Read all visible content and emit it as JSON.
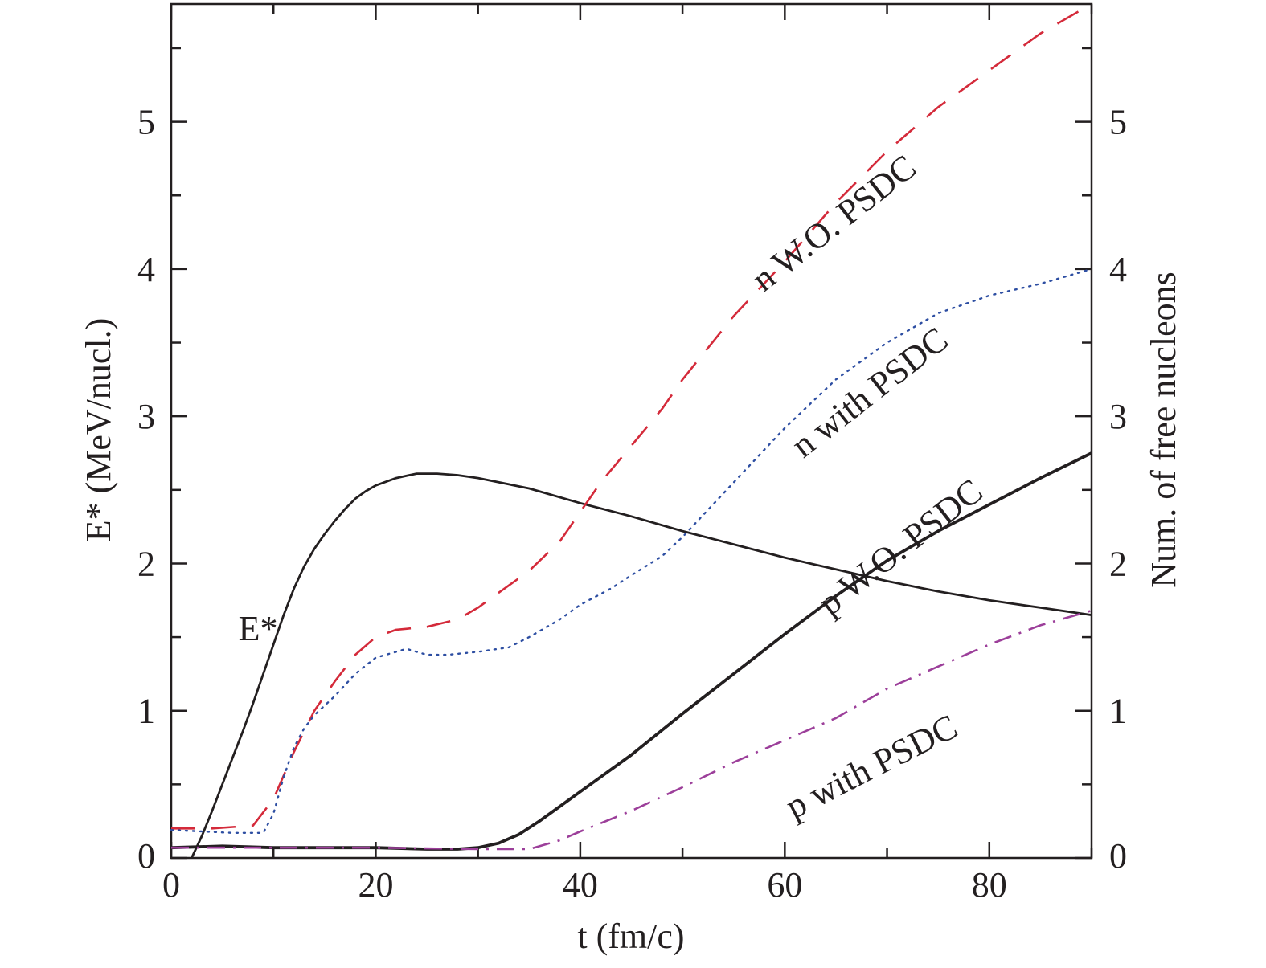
{
  "chart_data": {
    "type": "line",
    "xlabel": "t (fm/c)",
    "ylabel_left": "E* (MeV/nucl.)",
    "ylabel_right": "Num. of free nucleons",
    "xlim": [
      0,
      90
    ],
    "ylim": [
      0,
      5.8
    ],
    "xticks": [
      0,
      20,
      40,
      60,
      80
    ],
    "yticks": [
      0,
      1,
      2,
      3,
      4,
      5
    ],
    "grid": false,
    "legend": "none",
    "series": [
      {
        "name": "E*",
        "style": "solid",
        "color": "#231f20",
        "x": [
          2,
          3,
          4,
          5,
          6,
          7,
          8,
          9,
          10,
          11,
          12,
          13,
          14,
          15,
          16,
          17,
          18,
          19,
          20,
          22,
          24,
          26,
          28,
          30,
          35,
          40,
          45,
          50,
          55,
          60,
          65,
          70,
          75,
          80,
          85,
          90
        ],
        "y": [
          0.0,
          0.15,
          0.32,
          0.5,
          0.68,
          0.86,
          1.05,
          1.25,
          1.45,
          1.65,
          1.83,
          1.98,
          2.1,
          2.2,
          2.29,
          2.37,
          2.44,
          2.49,
          2.53,
          2.58,
          2.61,
          2.61,
          2.6,
          2.58,
          2.51,
          2.41,
          2.32,
          2.22,
          2.13,
          2.04,
          1.96,
          1.88,
          1.81,
          1.75,
          1.7,
          1.65
        ]
      },
      {
        "name": "n W.O. PSDC",
        "style": "dashed",
        "color": "#d42a3a",
        "x": [
          0,
          4,
          8,
          10,
          12,
          14,
          16,
          18,
          20,
          22,
          25,
          28,
          30,
          32,
          35,
          38,
          40,
          42,
          45,
          48,
          50,
          55,
          60,
          65,
          70,
          75,
          80,
          85,
          90
        ],
        "y": [
          0.2,
          0.2,
          0.22,
          0.4,
          0.72,
          1.0,
          1.2,
          1.38,
          1.5,
          1.55,
          1.57,
          1.62,
          1.7,
          1.8,
          1.95,
          2.15,
          2.35,
          2.55,
          2.8,
          3.05,
          3.25,
          3.68,
          4.05,
          4.45,
          4.8,
          5.1,
          5.35,
          5.6,
          5.8
        ]
      },
      {
        "name": "n with PSDC",
        "style": "dotted",
        "color": "#2d4ea2",
        "x": [
          0,
          3,
          6,
          9,
          10,
          11,
          12,
          13,
          14,
          16,
          18,
          20,
          22,
          23,
          25,
          27,
          30,
          33,
          35,
          38,
          40,
          43,
          45,
          48,
          50,
          55,
          60,
          65,
          70,
          75,
          80,
          85,
          90
        ],
        "y": [
          0.19,
          0.18,
          0.17,
          0.17,
          0.3,
          0.55,
          0.75,
          0.88,
          0.97,
          1.1,
          1.25,
          1.36,
          1.4,
          1.42,
          1.38,
          1.38,
          1.4,
          1.43,
          1.5,
          1.62,
          1.72,
          1.83,
          1.92,
          2.05,
          2.18,
          2.55,
          2.92,
          3.25,
          3.5,
          3.7,
          3.82,
          3.9,
          4.0
        ]
      },
      {
        "name": "p W.O. PSDC",
        "style": "solid-bold",
        "color": "#231f20",
        "x": [
          0,
          5,
          10,
          15,
          20,
          25,
          28,
          30,
          32,
          34,
          36,
          38,
          40,
          45,
          50,
          55,
          60,
          65,
          70,
          75,
          80,
          85,
          90
        ],
        "y": [
          0.07,
          0.08,
          0.07,
          0.07,
          0.07,
          0.06,
          0.06,
          0.07,
          0.1,
          0.16,
          0.25,
          0.35,
          0.45,
          0.7,
          0.98,
          1.25,
          1.52,
          1.78,
          2.02,
          2.22,
          2.4,
          2.58,
          2.75
        ]
      },
      {
        "name": "p with PSDC",
        "style": "dashdot",
        "color": "#9c3f9a",
        "x": [
          0,
          10,
          20,
          30,
          35,
          38,
          40,
          45,
          50,
          55,
          60,
          65,
          70,
          75,
          80,
          85,
          90
        ],
        "y": [
          0.07,
          0.07,
          0.07,
          0.06,
          0.06,
          0.12,
          0.18,
          0.32,
          0.48,
          0.65,
          0.8,
          0.95,
          1.15,
          1.3,
          1.45,
          1.58,
          1.68
        ]
      }
    ],
    "annotations": [
      {
        "text": "E*",
        "x": 8.5,
        "y": 1.48,
        "rotation": 0
      },
      {
        "text": "n W.O. PSDC",
        "x": 65.5,
        "y": 4.25,
        "rotation": -38
      },
      {
        "text": "n with PSDC",
        "x": 69,
        "y": 3.1,
        "rotation": -38
      },
      {
        "text": "p W.O. PSDC",
        "x": 72,
        "y": 2.05,
        "rotation": -38
      },
      {
        "text": "p with PSDC",
        "x": 69,
        "y": 0.55,
        "rotation": -27
      }
    ]
  }
}
